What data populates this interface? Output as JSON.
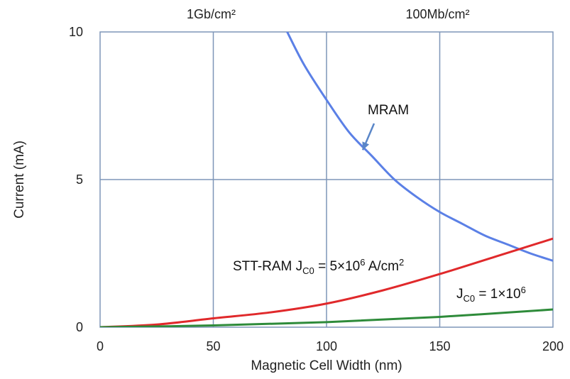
{
  "chart_data": {
    "type": "line",
    "title": "",
    "xlabel": "Magnetic Cell Width (nm)",
    "ylabel": "Current (mA)",
    "xlim": [
      0,
      200
    ],
    "ylim": [
      0,
      10
    ],
    "x_ticks": [
      0,
      50,
      100,
      150,
      200
    ],
    "y_ticks": [
      0,
      5,
      10
    ],
    "grid": true,
    "top_axis_labels": [
      {
        "x": 50,
        "text": "1Gb/cm²"
      },
      {
        "x": 150,
        "text": "100Mb/cm²"
      }
    ],
    "series": [
      {
        "name": "MRAM",
        "color": "#5b80e6",
        "x": [
          82,
          90,
          100,
          110,
          120,
          130,
          140,
          150,
          160,
          170,
          180,
          190,
          200
        ],
        "y": [
          10.1,
          8.9,
          7.7,
          6.6,
          5.8,
          5.0,
          4.4,
          3.9,
          3.5,
          3.1,
          2.8,
          2.5,
          2.25
        ]
      },
      {
        "name": "STT-RAM JC0 = 5×10⁶ A/cm²",
        "color": "#e0292b",
        "x": [
          0,
          25,
          50,
          75,
          100,
          125,
          150,
          175,
          200
        ],
        "y": [
          0.0,
          0.09,
          0.3,
          0.5,
          0.8,
          1.25,
          1.8,
          2.4,
          3.0
        ]
      },
      {
        "name": "JC0 = 1×10⁶",
        "color": "#2e8b3a",
        "x": [
          0,
          50,
          100,
          150,
          200
        ],
        "y": [
          0.0,
          0.06,
          0.17,
          0.35,
          0.6
        ]
      }
    ],
    "annotations": {
      "mram": {
        "label": "MRAM",
        "arrow_from": [
          121,
          6.9
        ],
        "arrow_to": [
          116,
          6.0
        ]
      },
      "stt": {
        "prefix": "STT-RAM J",
        "sub": "C0",
        "middle": " = 5×10",
        "sup": "6",
        "suffix": " A/cm",
        "sup2": "2"
      },
      "jc0": {
        "prefix": "J",
        "sub": "C0",
        "middle": " = 1×10",
        "sup": "6"
      }
    },
    "colors": {
      "grid": "#7f96b8",
      "frame": "#7f96b8",
      "arrow": "#5a86c8"
    }
  }
}
